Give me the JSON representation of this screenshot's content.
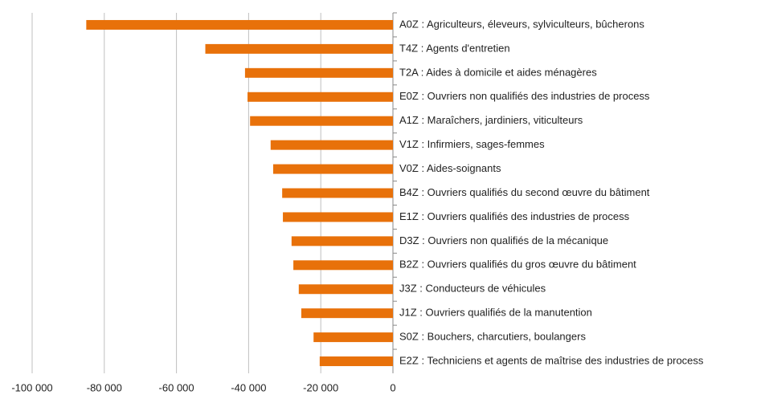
{
  "chart_data": {
    "type": "bar",
    "orientation": "horizontal",
    "categories": [
      "A0Z : Agriculteurs, éleveurs, sylviculteurs, bûcherons",
      "T4Z : Agents d'entretien",
      "T2A : Aides à domicile et aides ménagères",
      "E0Z : Ouvriers non qualifiés des industries de process",
      "A1Z : Maraîchers, jardiniers, viticulteurs",
      "V1Z : Infirmiers, sages-femmes",
      "V0Z : Aides-soignants",
      "B4Z : Ouvriers qualifiés du second œuvre du bâtiment",
      "E1Z : Ouvriers qualifiés des industries de process",
      "D3Z : Ouvriers non qualifiés de la mécanique",
      "B2Z : Ouvriers qualifiés du gros œuvre du bâtiment",
      "J3Z : Conducteurs de véhicules",
      "J1Z : Ouvriers qualifiés de la manutention",
      "S0Z : Bouchers, charcutiers, boulangers",
      "E2Z : Techniciens et agents de maîtrise des industries de process"
    ],
    "values": [
      -85000,
      -52000,
      -41000,
      -40300,
      -39600,
      -33900,
      -33200,
      -30700,
      -30500,
      -28100,
      -27600,
      -26100,
      -25400,
      -22000,
      -20300
    ],
    "color": "#e8710a",
    "xlim": [
      -100000,
      0
    ],
    "xticks": [
      {
        "value": -100000,
        "label": "-100 000"
      },
      {
        "value": -80000,
        "label": "-80 000"
      },
      {
        "value": -60000,
        "label": "-60 000"
      },
      {
        "value": -40000,
        "label": "-40 000"
      },
      {
        "value": -20000,
        "label": "-20 000"
      },
      0
    ],
    "grid": true
  }
}
